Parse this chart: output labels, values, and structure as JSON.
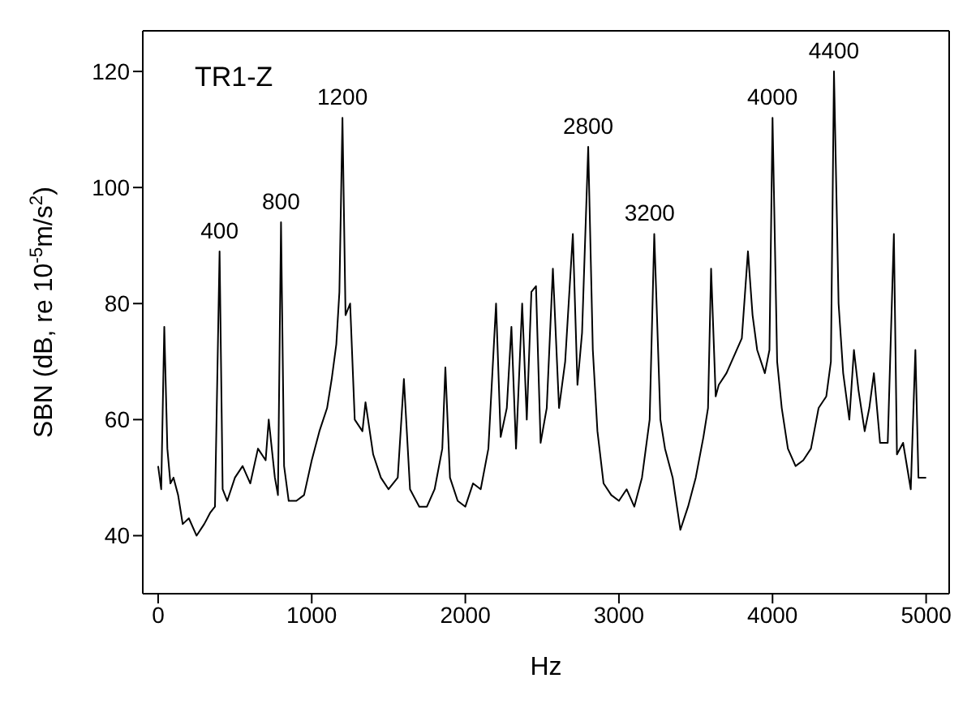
{
  "chart_data": {
    "type": "line",
    "xlabel": "Hz",
    "ylabel": "SBN (dB, re 10$^{-5}$m/s$^{2}$)",
    "annotations": [
      "TR1-Z",
      {
        "text": "400",
        "x": 400,
        "y": 89
      },
      {
        "text": "800",
        "x": 800,
        "y": 94
      },
      {
        "text": "1200",
        "x": 1200,
        "y": 112
      },
      {
        "text": "2800",
        "x": 2800,
        "y": 107
      },
      {
        "text": "3200",
        "x": 3200,
        "y": 92
      },
      {
        "text": "4000",
        "x": 4000,
        "y": 112
      },
      {
        "text": "4400",
        "x": 4400,
        "y": 120
      }
    ],
    "x": [
      0,
      20,
      40,
      60,
      80,
      100,
      130,
      160,
      200,
      250,
      300,
      340,
      370,
      400,
      420,
      450,
      500,
      550,
      600,
      650,
      700,
      720,
      760,
      780,
      800,
      820,
      850,
      900,
      950,
      1000,
      1050,
      1100,
      1130,
      1160,
      1180,
      1200,
      1220,
      1250,
      1280,
      1330,
      1350,
      1400,
      1450,
      1500,
      1560,
      1600,
      1640,
      1700,
      1750,
      1800,
      1850,
      1870,
      1900,
      1950,
      2000,
      2050,
      2100,
      2150,
      2200,
      2230,
      2270,
      2300,
      2330,
      2370,
      2400,
      2430,
      2460,
      2490,
      2530,
      2570,
      2610,
      2650,
      2700,
      2730,
      2760,
      2800,
      2830,
      2860,
      2900,
      2950,
      3000,
      3050,
      3100,
      3150,
      3200,
      3230,
      3270,
      3300,
      3350,
      3400,
      3450,
      3500,
      3550,
      3580,
      3600,
      3630,
      3650,
      3700,
      3750,
      3800,
      3840,
      3870,
      3900,
      3950,
      3980,
      4000,
      4030,
      4060,
      4100,
      4150,
      4200,
      4250,
      4300,
      4350,
      4380,
      4400,
      4430,
      4460,
      4500,
      4530,
      4560,
      4600,
      4630,
      4660,
      4700,
      4750,
      4790,
      4810,
      4850,
      4900,
      4930,
      4950,
      5000
    ],
    "values": [
      52,
      48,
      76,
      55,
      49,
      50,
      47,
      42,
      43,
      40,
      42,
      44,
      45,
      89,
      48,
      46,
      50,
      52,
      49,
      55,
      53,
      60,
      50,
      47,
      94,
      52,
      46,
      46,
      47,
      53,
      58,
      62,
      67,
      73,
      82,
      112,
      78,
      80,
      60,
      58,
      63,
      54,
      50,
      48,
      50,
      67,
      48,
      45,
      45,
      48,
      55,
      69,
      50,
      46,
      45,
      49,
      48,
      55,
      80,
      57,
      62,
      76,
      55,
      80,
      60,
      82,
      83,
      56,
      62,
      86,
      62,
      70,
      92,
      66,
      75,
      107,
      72,
      58,
      49,
      47,
      46,
      48,
      45,
      50,
      60,
      92,
      60,
      55,
      50,
      41,
      45,
      50,
      57,
      62,
      86,
      64,
      66,
      68,
      71,
      74,
      89,
      78,
      72,
      68,
      72,
      112,
      70,
      62,
      55,
      52,
      53,
      55,
      62,
      64,
      70,
      120,
      80,
      68,
      60,
      72,
      65,
      58,
      62,
      68,
      56,
      56,
      92,
      54,
      56,
      48,
      72,
      50,
      50
    ],
    "color": "#000000",
    "xlim": [
      -100,
      5150
    ],
    "xticks": [
      0,
      1000,
      2000,
      3000,
      4000,
      5000
    ],
    "ylim": [
      30,
      127
    ],
    "yticks": [
      40,
      60,
      80,
      100,
      120
    ],
    "marker": "none",
    "line_style": "solid"
  }
}
